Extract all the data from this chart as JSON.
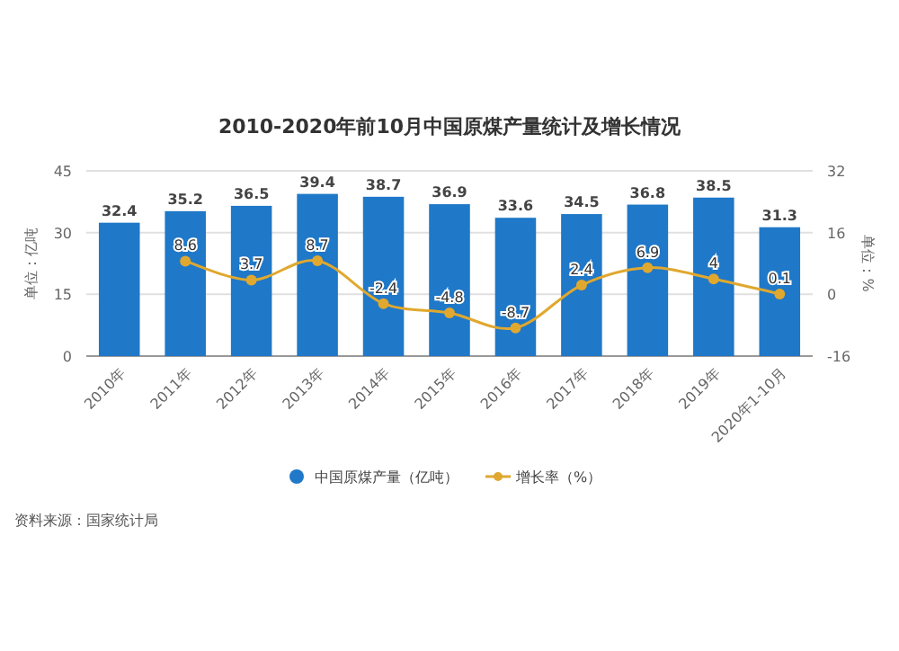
{
  "chart_data": {
    "type": "bar",
    "title": "2010-2020年前10月中国原煤产量统计及增长情况",
    "ylabel": "单位：亿吨",
    "y2label": "单位：%",
    "categories": [
      "2010年",
      "2011年",
      "2012年",
      "2013年",
      "2014年",
      "2015年",
      "2016年",
      "2017年",
      "2018年",
      "2019年",
      "2020年1-10月"
    ],
    "series": [
      {
        "name": "中国原煤产量（亿吨）",
        "color": "#1f78c8",
        "values": [
          32.4,
          35.2,
          36.5,
          39.4,
          38.7,
          36.9,
          33.6,
          34.5,
          36.8,
          38.5,
          31.3
        ]
      },
      {
        "name": "增长率（%）",
        "type": "line",
        "axis": "y2",
        "color": "#e0a82e",
        "values": [
          null,
          8.6,
          3.7,
          8.7,
          -2.4,
          -4.8,
          -8.7,
          2.4,
          6.9,
          4,
          0.1
        ]
      }
    ],
    "ylim": [
      0,
      45
    ],
    "yticks": [
      0,
      15,
      30,
      45
    ],
    "y2lim": [
      -16,
      32
    ],
    "y2ticks": [
      -16,
      0,
      16,
      32
    ],
    "data_labels": true,
    "grid": "y",
    "legend": "bottom",
    "marker": "circle",
    "annotations": [
      "资料来源：国家统计局"
    ]
  }
}
